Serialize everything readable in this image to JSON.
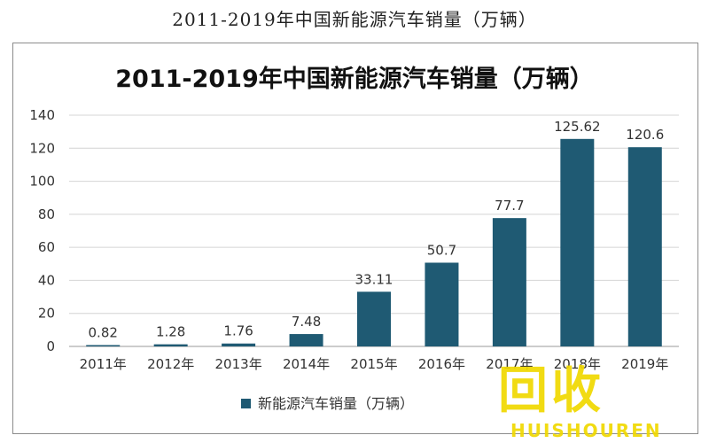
{
  "page": {
    "caption": "2011-2019年中国新能源汽车销量（万辆）"
  },
  "chart_data": {
    "type": "bar",
    "title": "2011-2019年中国新能源汽车销量（万辆）",
    "xlabel": "",
    "ylabel": "",
    "categories": [
      "2011年",
      "2012年",
      "2013年",
      "2014年",
      "2015年",
      "2016年",
      "2017年",
      "2018年",
      "2019年"
    ],
    "series": [
      {
        "name": "新能源汽车销量（万辆）",
        "values": [
          0.82,
          1.28,
          1.76,
          7.48,
          33.11,
          50.7,
          77.7,
          125.62,
          120.6
        ],
        "value_labels": [
          "0.82",
          "1.28",
          "1.76",
          "7.48",
          "33.11",
          "50.7",
          "77.7",
          "125.62",
          "120.6"
        ],
        "color": "#1f5a73"
      }
    ],
    "ylim": [
      0,
      140
    ],
    "yticks": [
      0,
      20,
      40,
      60,
      80,
      100,
      120,
      140
    ],
    "grid": true,
    "legend": "bottom"
  },
  "watermark": {
    "main": "回收",
    "sub": "HUISHOUREN"
  }
}
